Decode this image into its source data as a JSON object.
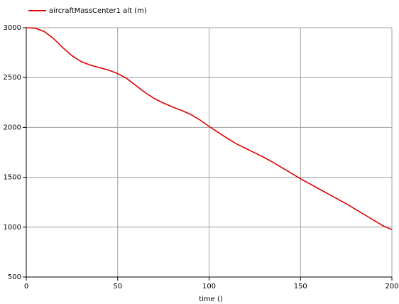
{
  "chart_data": {
    "type": "line",
    "xlabel": "time ()",
    "x": [
      0,
      5,
      10,
      15,
      20,
      25,
      30,
      35,
      40,
      45,
      50,
      55,
      60,
      65,
      70,
      75,
      80,
      85,
      90,
      95,
      100,
      105,
      110,
      115,
      120,
      125,
      130,
      135,
      140,
      145,
      150,
      155,
      160,
      165,
      170,
      175,
      180,
      185,
      190,
      195,
      200
    ],
    "series": [
      {
        "name": "aircraftMassCenter1 alt (m)",
        "color": "#e00000",
        "values": [
          3000,
          2995,
          2960,
          2890,
          2800,
          2720,
          2660,
          2625,
          2600,
          2575,
          2540,
          2490,
          2420,
          2350,
          2290,
          2245,
          2205,
          2170,
          2130,
          2075,
          2010,
          1950,
          1890,
          1835,
          1790,
          1745,
          1700,
          1650,
          1595,
          1540,
          1485,
          1435,
          1385,
          1335,
          1285,
          1235,
          1180,
          1125,
          1070,
          1015,
          975
        ]
      }
    ],
    "xlim": [
      0,
      200
    ],
    "xticks": [
      0,
      50,
      100,
      150,
      200
    ],
    "ylim": [
      500,
      3000
    ],
    "yticks": [
      500,
      1000,
      1500,
      2000,
      2500,
      3000
    ],
    "grid": true,
    "legend": "top-left"
  }
}
